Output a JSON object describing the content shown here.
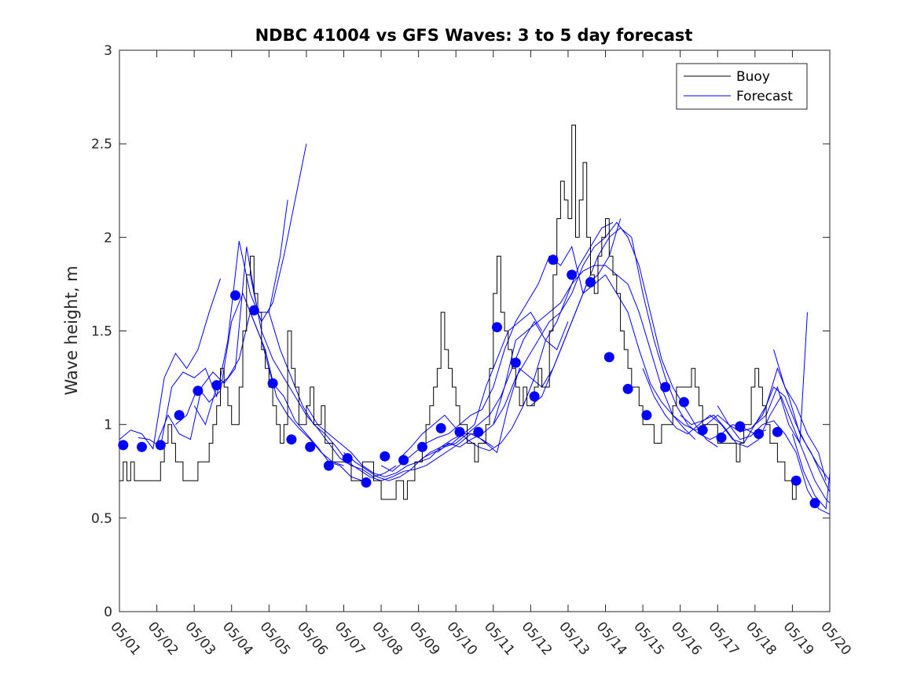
{
  "chart_data": {
    "type": "line",
    "title": "NDBC 41004 vs GFS Waves: 3 to 5 day forecast",
    "xlabel": "",
    "ylabel": "Wave height, m",
    "xlim": [
      "05/01",
      "05/20"
    ],
    "ylim": [
      0,
      3
    ],
    "yticks": [
      0,
      0.5,
      1,
      1.5,
      2,
      2.5,
      3
    ],
    "xtick_labels": [
      "05/01",
      "05/02",
      "05/03",
      "05/04",
      "05/05",
      "05/06",
      "05/07",
      "05/08",
      "05/09",
      "05/10",
      "05/11",
      "05/12",
      "05/13",
      "05/14",
      "05/15",
      "05/16",
      "05/17",
      "05/18",
      "05/19",
      "05/20"
    ],
    "grid": false,
    "legend": {
      "position": "top-right",
      "entries": [
        {
          "name": "Buoy",
          "color": "#000000"
        },
        {
          "name": "Forecast",
          "color": "#0000ff"
        }
      ]
    },
    "colors": {
      "buoy": "#000000",
      "forecast": "#0000ff"
    },
    "buoy": {
      "name": "Buoy",
      "day": [
        0,
        0.1,
        0.2,
        0.3,
        0.4,
        0.5,
        0.6,
        0.7,
        0.8,
        0.9,
        1.0,
        1.1,
        1.2,
        1.3,
        1.4,
        1.5,
        1.6,
        1.7,
        1.8,
        1.9,
        2.0,
        2.1,
        2.2,
        2.3,
        2.4,
        2.5,
        2.6,
        2.7,
        2.8,
        2.9,
        3.0,
        3.1,
        3.2,
        3.3,
        3.4,
        3.5,
        3.6,
        3.7,
        3.8,
        3.9,
        4.0,
        4.1,
        4.2,
        4.3,
        4.4,
        4.5,
        4.6,
        4.7,
        4.8,
        4.9,
        5.0,
        5.1,
        5.2,
        5.3,
        5.4,
        5.5,
        5.6,
        5.7,
        5.8,
        5.9,
        6.0,
        6.1,
        6.2,
        6.3,
        6.4,
        6.5,
        6.6,
        6.7,
        6.8,
        6.9,
        7.0,
        7.1,
        7.2,
        7.3,
        7.4,
        7.5,
        7.6,
        7.7,
        7.8,
        7.9,
        8.0,
        8.1,
        8.2,
        8.3,
        8.4,
        8.5,
        8.6,
        8.7,
        8.8,
        8.9,
        9.0,
        9.1,
        9.2,
        9.3,
        9.4,
        9.5,
        9.6,
        9.7,
        9.8,
        9.9,
        10.0,
        10.1,
        10.2,
        10.3,
        10.4,
        10.5,
        10.6,
        10.7,
        10.8,
        10.9,
        11.0,
        11.1,
        11.2,
        11.3,
        11.4,
        11.5,
        11.6,
        11.7,
        11.8,
        11.9,
        12.0,
        12.1,
        12.2,
        12.3,
        12.4,
        12.5,
        12.6,
        12.7,
        12.8,
        12.9,
        13.0,
        13.1,
        13.2,
        13.3,
        13.4,
        13.5,
        13.6,
        13.7,
        13.8,
        13.9,
        14.0,
        14.1,
        14.2,
        14.3,
        14.4,
        14.5,
        14.6,
        14.7,
        14.8,
        14.9,
        15.0,
        15.1,
        15.2,
        15.3,
        15.4,
        15.5,
        15.6,
        15.7,
        15.8,
        15.9,
        16.0,
        16.1,
        16.2,
        16.3,
        16.4,
        16.5,
        16.6,
        16.7,
        16.8,
        16.9,
        17.0,
        17.1,
        17.2,
        17.3,
        17.4,
        17.5,
        17.6,
        17.7,
        17.8,
        17.9,
        18.0,
        18.1,
        18.2,
        18.3,
        18.4,
        18.5,
        18.6,
        18.7,
        18.8,
        18.9,
        19.0
      ],
      "values": [
        0.7,
        0.8,
        0.7,
        0.8,
        0.7,
        0.7,
        0.7,
        0.7,
        0.7,
        0.7,
        0.7,
        0.8,
        0.9,
        1.0,
        0.9,
        0.8,
        0.8,
        0.7,
        0.7,
        0.7,
        0.7,
        0.8,
        0.8,
        0.8,
        0.9,
        1.0,
        1.1,
        1.3,
        1.2,
        1.1,
        1.0,
        1.0,
        1.2,
        1.5,
        1.8,
        1.9,
        1.7,
        1.6,
        1.4,
        1.3,
        1.2,
        1.1,
        1.0,
        0.9,
        1.0,
        1.5,
        1.3,
        1.2,
        1.0,
        1.0,
        1.1,
        1.2,
        1.0,
        1.0,
        1.1,
        0.9,
        0.9,
        0.8,
        0.8,
        0.8,
        0.8,
        0.8,
        0.7,
        0.7,
        0.7,
        0.8,
        0.8,
        0.8,
        0.7,
        0.7,
        0.6,
        0.6,
        0.6,
        0.6,
        0.7,
        0.7,
        0.6,
        0.7,
        0.7,
        0.8,
        0.8,
        0.9,
        1.0,
        1.1,
        1.2,
        1.3,
        1.6,
        1.4,
        1.3,
        1.2,
        1.1,
        1.0,
        1.0,
        0.9,
        0.9,
        0.8,
        0.9,
        0.9,
        1.0,
        1.3,
        1.7,
        1.9,
        1.6,
        1.5,
        1.4,
        1.3,
        1.2,
        1.1,
        1.2,
        1.1,
        1.1,
        1.2,
        1.3,
        1.2,
        1.2,
        1.5,
        1.8,
        2.1,
        2.3,
        2.2,
        2.1,
        2.6,
        2.0,
        2.2,
        2.4,
        2.0,
        1.8,
        1.7,
        1.9,
        2.0,
        2.1,
        1.9,
        1.8,
        1.7,
        1.5,
        1.4,
        1.3,
        1.2,
        1.2,
        1.1,
        1.0,
        1.0,
        1.0,
        0.9,
        0.9,
        1.0,
        1.0,
        1.0,
        1.1,
        1.2,
        1.2,
        1.2,
        1.2,
        1.3,
        1.2,
        1.1,
        1.0,
        1.0,
        1.0,
        1.0,
        0.9,
        0.9,
        0.9,
        0.9,
        0.9,
        0.8,
        0.9,
        1.0,
        1.0,
        1.2,
        1.3,
        1.2,
        1.1,
        1.0,
        0.9,
        0.9,
        0.8,
        0.8,
        0.7,
        0.7,
        0.6,
        0.7
      ]
    },
    "forecast_runs": [
      {
        "day": [
          0,
          0.3,
          0.6,
          0.9,
          1.2,
          1.5,
          1.8,
          2.1,
          2.4,
          2.7
        ],
        "values": [
          0.92,
          0.97,
          0.95,
          0.87,
          1.25,
          1.38,
          1.3,
          1.4,
          1.6,
          1.78
        ]
      },
      {
        "day": [
          0.5,
          0.8,
          1.1,
          1.4,
          1.7,
          2.0,
          2.3,
          2.6,
          2.9,
          3.2,
          3.5,
          3.8,
          4.1,
          4.4,
          4.7,
          5.0
        ],
        "values": [
          0.93,
          0.92,
          0.88,
          1.2,
          1.28,
          1.25,
          1.3,
          1.15,
          1.45,
          1.98,
          1.7,
          1.55,
          1.65,
          1.9,
          2.2,
          2.5
        ]
      },
      {
        "day": [
          1.0,
          1.3,
          1.6,
          1.9,
          2.2,
          2.5,
          2.8,
          3.1,
          3.4,
          3.7,
          4.0,
          4.3,
          4.5
        ],
        "values": [
          0.9,
          1.05,
          0.95,
          0.92,
          1.2,
          1.28,
          1.22,
          1.3,
          1.95,
          1.6,
          1.6,
          1.9,
          2.2
        ]
      },
      {
        "day": [
          1.5,
          1.8,
          2.1,
          2.4,
          2.7,
          3.0,
          3.3,
          3.6,
          3.9,
          4.2,
          4.5,
          4.8,
          5.1,
          5.4,
          5.7,
          6.0
        ],
        "values": [
          1.0,
          1.05,
          1.2,
          1.12,
          1.18,
          1.55,
          1.7,
          1.55,
          1.4,
          1.15,
          1.05,
          0.98,
          0.92,
          0.85,
          0.8,
          0.78
        ]
      },
      {
        "day": [
          2.0,
          2.3,
          2.6,
          2.9,
          3.2,
          3.5,
          3.8,
          4.1,
          4.4,
          4.7,
          5.0,
          5.3,
          5.6,
          5.9,
          6.2,
          6.5
        ],
        "values": [
          1.1,
          1.0,
          1.2,
          1.25,
          1.35,
          1.6,
          1.45,
          1.22,
          1.15,
          1.02,
          0.95,
          0.88,
          0.8,
          0.78,
          0.72,
          0.7
        ]
      },
      {
        "day": [
          3.5,
          3.8,
          4.1,
          4.4,
          4.7,
          5.0,
          5.3,
          5.6,
          5.9,
          6.2,
          6.5,
          6.8,
          7.1,
          7.4
        ],
        "values": [
          1.8,
          1.5,
          1.35,
          1.25,
          1.15,
          1.05,
          0.98,
          0.9,
          0.82,
          0.78,
          0.76,
          0.72,
          0.74,
          0.78
        ]
      },
      {
        "day": [
          4.0,
          4.3,
          4.6,
          4.9,
          5.2,
          5.5,
          5.8,
          6.1,
          6.4,
          6.7,
          7.0,
          7.3,
          7.6,
          7.9,
          8.2,
          8.5,
          8.8,
          9.1,
          9.4,
          9.7,
          10.0
        ],
        "values": [
          1.6,
          1.4,
          1.25,
          1.1,
          1.0,
          0.95,
          0.88,
          0.8,
          0.76,
          0.72,
          0.7,
          0.72,
          0.75,
          0.76,
          0.78,
          0.82,
          0.86,
          0.9,
          0.95,
          0.92,
          0.88
        ]
      },
      {
        "day": [
          5.0,
          5.3,
          5.6,
          5.9,
          6.2,
          6.5,
          6.8,
          7.1,
          7.4,
          7.7,
          8.0,
          8.3,
          8.6,
          8.9,
          9.2,
          9.5,
          9.8,
          10.1,
          10.4,
          10.7,
          11.0,
          11.3
        ],
        "values": [
          1.1,
          1.0,
          0.95,
          0.9,
          0.85,
          0.78,
          0.74,
          0.72,
          0.74,
          0.78,
          0.8,
          0.85,
          0.88,
          0.9,
          0.95,
          1.0,
          1.2,
          1.35,
          1.5,
          1.55,
          1.6,
          1.5
        ]
      },
      {
        "day": [
          6.0,
          6.3,
          6.6,
          6.9,
          7.2,
          7.5,
          7.8,
          8.1,
          8.4,
          8.7,
          9.0,
          9.3,
          9.6,
          9.9,
          10.2,
          10.5,
          10.8,
          11.1,
          11.4,
          11.7,
          12.0
        ],
        "values": [
          0.85,
          0.8,
          0.76,
          0.72,
          0.7,
          0.72,
          0.76,
          0.82,
          0.85,
          0.88,
          0.9,
          0.95,
          1.0,
          1.05,
          1.15,
          1.3,
          1.45,
          1.55,
          1.45,
          1.4,
          1.55
        ]
      },
      {
        "day": [
          7.0,
          7.3,
          7.6,
          7.9,
          8.2,
          8.5,
          8.8,
          9.1,
          9.4,
          9.7,
          10.0,
          10.3,
          10.6,
          10.9,
          11.2,
          11.5,
          11.8,
          12.1,
          12.4,
          12.7,
          13.0
        ],
        "values": [
          0.78,
          0.75,
          0.8,
          0.85,
          0.9,
          0.93,
          0.95,
          1.0,
          1.05,
          1.08,
          1.2,
          1.4,
          1.55,
          1.65,
          1.75,
          1.9,
          1.85,
          1.95,
          1.7,
          1.75,
          1.8
        ]
      },
      {
        "day": [
          7.5,
          7.8,
          8.1,
          8.4,
          8.7,
          9.0,
          9.3,
          9.6,
          9.9,
          10.2,
          10.5,
          10.8,
          11.1,
          11.4,
          11.7,
          12.0,
          12.3,
          12.6,
          12.9,
          13.2
        ],
        "values": [
          0.82,
          0.88,
          0.95,
          1.0,
          1.05,
          0.98,
          0.92,
          0.88,
          0.86,
          0.9,
          0.98,
          1.1,
          1.25,
          1.45,
          1.55,
          1.7,
          1.85,
          1.95,
          2.05,
          2.08
        ]
      },
      {
        "day": [
          8.0,
          8.3,
          8.6,
          8.9,
          9.2,
          9.5,
          9.8,
          10.1,
          10.4,
          10.7,
          11.0,
          11.3,
          11.6,
          11.9,
          12.2,
          12.5,
          12.8,
          13.1,
          13.4
        ],
        "values": [
          0.8,
          0.82,
          0.88,
          0.92,
          0.95,
          0.95,
          0.9,
          0.85,
          1.1,
          1.3,
          1.25,
          1.2,
          1.3,
          1.45,
          1.6,
          1.75,
          1.8,
          1.9,
          2.1
        ]
      },
      {
        "day": [
          8.5,
          8.8,
          9.1,
          9.4,
          9.7,
          10.0,
          10.3,
          10.6,
          10.9,
          11.2,
          11.5,
          11.8,
          12.1,
          12.4,
          12.7,
          13.0,
          13.3,
          13.6,
          13.9,
          14.2,
          14.5,
          14.8,
          15.1,
          15.4
        ],
        "values": [
          0.85,
          0.9,
          0.88,
          0.92,
          0.95,
          1.0,
          1.2,
          1.45,
          1.5,
          1.55,
          1.6,
          1.65,
          1.75,
          1.82,
          1.85,
          1.85,
          1.8,
          1.75,
          1.6,
          1.4,
          1.2,
          1.05,
          0.98,
          0.92
        ]
      },
      {
        "day": [
          10.0,
          10.3,
          10.6,
          10.9,
          11.2,
          11.5,
          11.8,
          12.1,
          12.4,
          12.7,
          13.0,
          13.3,
          13.6,
          13.9,
          14.2,
          14.5,
          14.8,
          15.1,
          15.4,
          15.7,
          16.0
        ],
        "values": [
          1.0,
          1.1,
          1.25,
          1.35,
          1.45,
          1.55,
          1.6,
          1.7,
          1.85,
          1.95,
          2.0,
          2.08,
          2.0,
          1.85,
          1.6,
          1.35,
          1.2,
          1.1,
          1.0,
          0.92,
          0.88
        ]
      },
      {
        "day": [
          11.0,
          11.3,
          11.6,
          11.9,
          12.2,
          12.5,
          12.8,
          13.1,
          13.4,
          13.7,
          14.0,
          14.3,
          14.6,
          14.9,
          15.2,
          15.5,
          15.8,
          16.1,
          16.4,
          16.7,
          17.0,
          17.3
        ],
        "values": [
          1.1,
          1.15,
          1.3,
          1.45,
          1.6,
          1.75,
          1.9,
          2.0,
          2.05,
          2.0,
          1.7,
          1.45,
          1.25,
          1.1,
          1.0,
          0.95,
          0.92,
          0.95,
          1.0,
          0.98,
          0.95,
          0.97
        ]
      },
      {
        "day": [
          13.0,
          13.3,
          13.6,
          13.9,
          14.2,
          14.5,
          14.8,
          15.1,
          15.4,
          15.7,
          16.0,
          16.3,
          16.6,
          16.9,
          17.2,
          17.5,
          17.8,
          18.1,
          18.4,
          18.7,
          19.0
        ],
        "values": [
          1.8,
          1.7,
          1.6,
          1.4,
          1.22,
          1.12,
          1.05,
          1.0,
          0.97,
          1.0,
          1.05,
          1.0,
          0.96,
          0.98,
          1.05,
          1.2,
          1.15,
          1.0,
          0.88,
          0.78,
          0.7
        ]
      },
      {
        "day": [
          14.0,
          14.3,
          14.6,
          14.9,
          15.2,
          15.5,
          15.8,
          16.1,
          16.4,
          16.7,
          17.0,
          17.3,
          17.6,
          17.9,
          18.2,
          18.5,
          18.8,
          19.0
        ],
        "values": [
          1.3,
          1.15,
          1.05,
          0.98,
          0.95,
          1.0,
          1.05,
          1.0,
          0.92,
          0.9,
          1.0,
          1.1,
          1.3,
          1.15,
          0.95,
          0.85,
          0.72,
          0.64
        ]
      },
      {
        "day": [
          15.0,
          15.3,
          15.6,
          15.9,
          16.2,
          16.5,
          16.8,
          17.1,
          17.4,
          17.7,
          18.0,
          18.3,
          18.6,
          18.9,
          19.0
        ],
        "values": [
          1.05,
          1.0,
          1.02,
          1.05,
          0.98,
          0.9,
          0.88,
          0.92,
          1.05,
          1.15,
          1.0,
          0.85,
          0.7,
          0.6,
          0.58
        ]
      },
      {
        "day": [
          16.0,
          16.3,
          16.6,
          16.9,
          17.2,
          17.5,
          17.8,
          18.1,
          18.4,
          18.7,
          19.0
        ],
        "values": [
          1.1,
          1.0,
          0.92,
          0.94,
          1.0,
          1.02,
          0.95,
          0.85,
          0.65,
          0.55,
          0.52
        ]
      },
      {
        "day": [
          17.0,
          17.3,
          17.6,
          17.9,
          18.2,
          18.4
        ],
        "values": [
          1.0,
          1.05,
          1.2,
          1.0,
          0.9,
          1.6
        ]
      },
      {
        "day": [
          17.5,
          17.8,
          18.1,
          18.4,
          18.7,
          18.9
        ],
        "values": [
          1.4,
          1.2,
          1.1,
          0.95,
          0.85,
          0.7
        ]
      },
      {
        "day": [
          18.0,
          18.3,
          18.6,
          18.9,
          19.0
        ],
        "values": [
          0.95,
          0.75,
          0.62,
          0.55,
          0.74
        ]
      }
    ],
    "forecast_points": {
      "name": "Forecast",
      "day": [
        0.1,
        0.6,
        1.1,
        1.6,
        2.1,
        2.6,
        3.1,
        3.6,
        4.1,
        4.6,
        5.1,
        5.6,
        6.1,
        6.6,
        7.1,
        7.6,
        8.1,
        8.6,
        9.1,
        9.6,
        10.1,
        10.6,
        11.1,
        11.6,
        12.1,
        12.6,
        13.1,
        13.6,
        14.1,
        14.6,
        15.1,
        15.6,
        16.1,
        16.6,
        17.1,
        17.6,
        18.1,
        18.6
      ],
      "values": [
        0.89,
        0.88,
        0.89,
        1.05,
        1.18,
        1.21,
        1.69,
        1.61,
        1.22,
        0.92,
        0.88,
        0.78,
        0.82,
        0.69,
        0.83,
        0.81,
        0.88,
        0.98,
        0.96,
        0.96,
        1.52,
        1.33,
        1.15,
        1.88,
        1.8,
        1.76,
        1.36,
        1.19,
        1.05,
        1.2,
        1.12,
        0.97,
        0.93,
        0.99,
        0.95,
        0.96,
        0.7,
        0.58
      ]
    }
  }
}
